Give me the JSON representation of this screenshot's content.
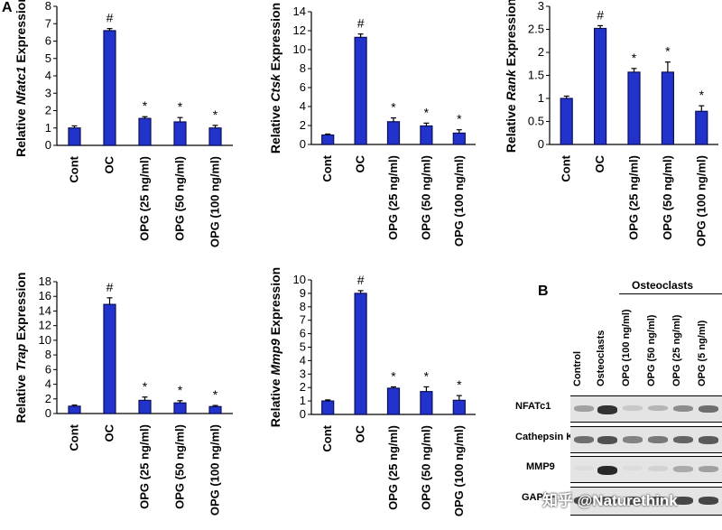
{
  "panel_a_label": "A",
  "panel_b_label": "B",
  "colors": {
    "bar": "#2233cc",
    "bar_edge": "#0b0f5a",
    "axis": "#000000"
  },
  "chart_data": [
    {
      "type": "bar",
      "title": "",
      "ylabel_prefix": "Relative ",
      "ylabel_gene": "Nfatc1",
      "ylabel_suffix": " Expression",
      "categories": [
        "Cont",
        "OC",
        "OPG (25 ng/ml)",
        "OPG (50 ng/ml)",
        "OPG (100 ng/ml)"
      ],
      "values": [
        1.0,
        6.6,
        1.55,
        1.35,
        1.0
      ],
      "errors": [
        0.12,
        0.12,
        0.1,
        0.25,
        0.15
      ],
      "marks": [
        "",
        "#",
        "*",
        "*",
        "*"
      ],
      "ylim": [
        0,
        8
      ],
      "yticks": [
        0,
        1,
        2,
        3,
        4,
        5,
        6,
        7,
        8
      ],
      "ytick_labels": [
        "0",
        "1",
        "2",
        "3",
        "4",
        "5",
        "6",
        "7",
        "8"
      ]
    },
    {
      "type": "bar",
      "title": "",
      "ylabel_prefix": "Relative ",
      "ylabel_gene": "Ctsk",
      "ylabel_suffix": " Expression",
      "categories": [
        "Cont",
        "OC",
        "OPG (25 ng/ml)",
        "OPG (50 ng/ml)",
        "OPG (100 ng/ml)"
      ],
      "values": [
        1.0,
        11.3,
        2.4,
        1.95,
        1.2
      ],
      "errors": [
        0.1,
        0.35,
        0.4,
        0.3,
        0.35
      ],
      "marks": [
        "",
        "#",
        "*",
        "*",
        "*"
      ],
      "ylim": [
        0,
        14
      ],
      "yticks": [
        0,
        2,
        4,
        6,
        8,
        10,
        12,
        14
      ],
      "ytick_labels": [
        "0",
        "2",
        "4",
        "6",
        "8",
        "10",
        "12",
        "14"
      ]
    },
    {
      "type": "bar",
      "title": "",
      "ylabel_prefix": "Relative ",
      "ylabel_gene": "Rank",
      "ylabel_suffix": " Expression",
      "categories": [
        "Cont",
        "OC",
        "OPG (25 ng/ml)",
        "OPG (50 ng/ml)",
        "OPG (100 ng/ml)"
      ],
      "values": [
        1.0,
        2.52,
        1.57,
        1.57,
        0.72
      ],
      "errors": [
        0.05,
        0.06,
        0.08,
        0.22,
        0.12
      ],
      "marks": [
        "",
        "#",
        "*",
        "*",
        "*"
      ],
      "ylim": [
        0,
        3
      ],
      "yticks": [
        0,
        0.5,
        1,
        1.5,
        2,
        2.5,
        3
      ],
      "ytick_labels": [
        "0",
        "0.5",
        "1",
        "1.5",
        "2",
        "2.5",
        "3"
      ]
    },
    {
      "type": "bar",
      "title": "",
      "ylabel_prefix": "Relative ",
      "ylabel_gene": "Trap",
      "ylabel_suffix": " Expression",
      "categories": [
        "Cont",
        "OC",
        "OPG (25 ng/ml)",
        "OPG (50 ng/ml)",
        "OPG (100 ng/ml)"
      ],
      "values": [
        1.0,
        14.9,
        1.8,
        1.45,
        0.95
      ],
      "errors": [
        0.15,
        0.9,
        0.45,
        0.3,
        0.15
      ],
      "marks": [
        "",
        "#",
        "*",
        "*",
        "*"
      ],
      "ylim": [
        0,
        18
      ],
      "yticks": [
        0,
        2,
        4,
        6,
        8,
        10,
        12,
        14,
        16,
        18
      ],
      "ytick_labels": [
        "0",
        "2",
        "4",
        "6",
        "8",
        "10",
        "12",
        "14",
        "16",
        "18"
      ]
    },
    {
      "type": "bar",
      "title": "",
      "ylabel_prefix": "Relative ",
      "ylabel_gene": "Mmp9",
      "ylabel_suffix": " Expression",
      "categories": [
        "Cont",
        "OC",
        "OPG (25 ng/ml)",
        "OPG (50 ng/ml)",
        "OPG (100 ng/ml)"
      ],
      "values": [
        1.0,
        9.0,
        1.95,
        1.7,
        1.05
      ],
      "errors": [
        0.08,
        0.2,
        0.1,
        0.35,
        0.35
      ],
      "marks": [
        "",
        "#",
        "*",
        "*",
        "*"
      ],
      "ylim": [
        0,
        10
      ],
      "yticks": [
        0,
        1,
        2,
        3,
        4,
        5,
        6,
        7,
        8,
        9,
        10
      ],
      "ytick_labels": [
        "0",
        "1",
        "2",
        "3",
        "4",
        "5",
        "6",
        "7",
        "8",
        "9",
        "10"
      ]
    }
  ],
  "blot": {
    "group_label": "Osteoclasts",
    "lanes": [
      "Control",
      "Osteoclasts",
      "OPG (100 ng/ml)",
      "OPG (50 ng/ml)",
      "OPG (25 ng/ml)",
      "OPG (5 ng/ml)"
    ],
    "rows": [
      {
        "label": "NFATc1",
        "intensities": [
          0.35,
          0.9,
          0.15,
          0.25,
          0.45,
          0.6
        ]
      },
      {
        "label": "Cathepsin K",
        "intensities": [
          0.6,
          0.75,
          0.5,
          0.55,
          0.65,
          0.7
        ]
      },
      {
        "label": "MMP9",
        "intensities": [
          0.05,
          0.95,
          0.05,
          0.1,
          0.3,
          0.35
        ]
      },
      {
        "label": "GAPDH",
        "intensities": [
          0.8,
          0.8,
          0.8,
          0.8,
          0.8,
          0.8
        ]
      }
    ]
  },
  "watermark": "知乎 @Naturethink"
}
